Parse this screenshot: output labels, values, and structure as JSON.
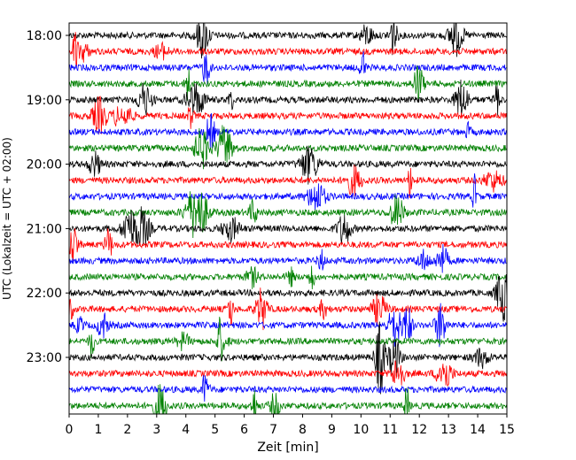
{
  "chart_data": {
    "type": "line",
    "title": "",
    "xlabel": "Zeit  [min]",
    "ylabel": "UTC (Lokalzeit = UTC + 02:00)",
    "xlim": [
      0,
      15
    ],
    "x_ticks": [
      "0",
      "1",
      "2",
      "3",
      "4",
      "5",
      "6",
      "7",
      "8",
      "9",
      "10",
      "11",
      "12",
      "13",
      "14",
      "15"
    ],
    "y_ticks": [
      {
        "label": "18:00",
        "row": 0
      },
      {
        "label": "19:00",
        "row": 4
      },
      {
        "label": "20:00",
        "row": 8
      },
      {
        "label": "21:00",
        "row": 12
      },
      {
        "label": "22:00",
        "row": 16
      },
      {
        "label": "23:00",
        "row": 20
      }
    ],
    "trace_interval_minutes": 15,
    "trace_count": 24,
    "trace_colors": [
      "#000000",
      "#ff0000",
      "#0000ff",
      "#008000"
    ],
    "grid": false
  }
}
